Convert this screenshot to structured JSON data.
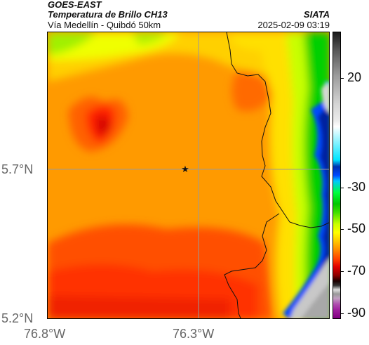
{
  "header": {
    "satellite": "GOES-EAST",
    "product": "Temperatura de Brillo CH13",
    "region": "Vía Medellín - Quibdó 50km",
    "source": "SIATA",
    "datetime": "2025-02-09 03:19"
  },
  "axes": {
    "lat_labels": [
      "5.7°N",
      "5.2°N"
    ],
    "lon_labels": [
      "76.8°W",
      "76.3°W"
    ]
  },
  "colorbar": {
    "labels": [
      "20",
      "-30",
      "-50",
      "-70",
      "-90"
    ],
    "units": ""
  },
  "colors": {
    "cold_core": "#e00000",
    "mid": "#ff8c00",
    "warm": "#ffff00",
    "cold_cloud": "#0030b0",
    "surface": "#d0d0d0"
  },
  "marker": {
    "symbol": "★"
  }
}
